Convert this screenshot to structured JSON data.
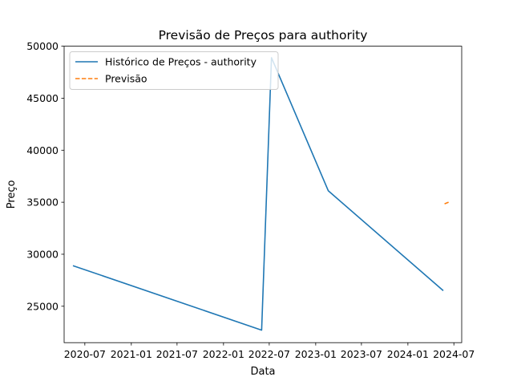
{
  "chart_data": {
    "type": "line",
    "title": "Previsão de Preços para authority",
    "xlabel": "Data",
    "ylabel": "Preço",
    "x_axis": "date",
    "xlim": [
      "2020-04-10",
      "2024-08-01"
    ],
    "ylim": [
      21500,
      50000
    ],
    "x_ticks": [
      "2020-07-01",
      "2021-01-01",
      "2021-07-01",
      "2022-01-01",
      "2022-07-01",
      "2023-01-01",
      "2023-07-01",
      "2024-01-01",
      "2024-07-01"
    ],
    "x_tick_labels": [
      "2020-07",
      "2021-01",
      "2021-07",
      "2022-01",
      "2022-07",
      "2023-01",
      "2023-07",
      "2024-01",
      "2024-07"
    ],
    "y_ticks": [
      25000,
      30000,
      35000,
      40000,
      45000,
      50000
    ],
    "grid": false,
    "legend_position": "top-left",
    "series": [
      {
        "name": "Histórico de Preços - authority",
        "color": "#1f77b4",
        "style": "solid",
        "x": [
          "2020-05-15",
          "2022-06-01",
          "2022-07-10",
          "2023-02-20",
          "2024-05-20"
        ],
        "y": [
          28900,
          22700,
          48900,
          36100,
          26500
        ]
      },
      {
        "name": "Previsão",
        "color": "#ff7f0e",
        "style": "dashed",
        "x": [
          "2024-05-25",
          "2024-06-10"
        ],
        "y": [
          34850,
          35000
        ]
      }
    ]
  }
}
